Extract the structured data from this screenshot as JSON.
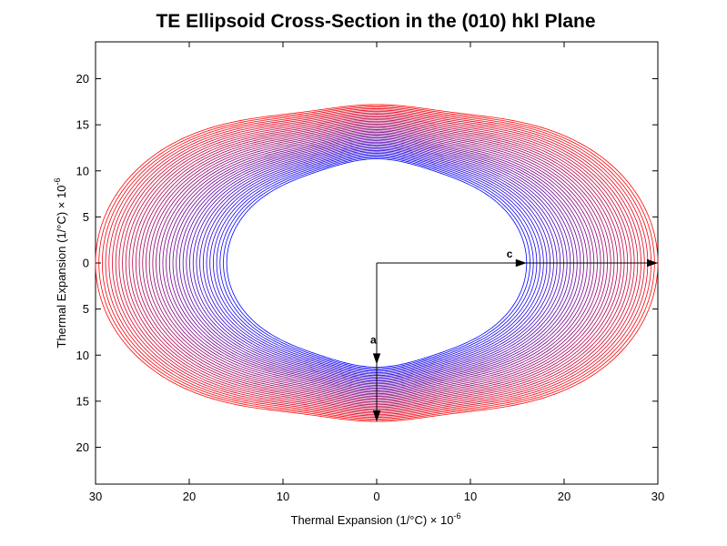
{
  "chart_data": {
    "type": "line",
    "title": "TE Ellipsoid Cross-Section in the (010) hkl Plane",
    "xlabel": {
      "text": "Thermal Expansion (1/°C) × 10",
      "exp": "-6"
    },
    "ylabel": {
      "text": "Thermal Expansion (1/°C) × 10",
      "exp": "-6"
    },
    "xlim": [
      -30,
      30
    ],
    "ylim": [
      -24,
      24
    ],
    "x_ticks": [
      {
        "v": -30,
        "label": "30"
      },
      {
        "v": -20,
        "label": "20"
      },
      {
        "v": -10,
        "label": "10"
      },
      {
        "v": 0,
        "label": "0"
      },
      {
        "v": 10,
        "label": "10"
      },
      {
        "v": 20,
        "label": "20"
      },
      {
        "v": 30,
        "label": "30"
      }
    ],
    "y_ticks": [
      {
        "v": 20,
        "label": "20"
      },
      {
        "v": 15,
        "label": "15"
      },
      {
        "v": 10,
        "label": "10"
      },
      {
        "v": 5,
        "label": "5"
      },
      {
        "v": 0,
        "label": "0"
      },
      {
        "v": -5,
        "label": "5"
      },
      {
        "v": -10,
        "label": "10"
      },
      {
        "v": -15,
        "label": "15"
      },
      {
        "v": -20,
        "label": "20"
      }
    ],
    "grid": false,
    "series_colors": {
      "inner": "#0000ff",
      "outer": "#ff0000"
    },
    "contours": {
      "count": 40,
      "inner": {
        "c_axis": 16,
        "a_axis": 11.3
      },
      "outer": {
        "c_axis": 30,
        "a_axis": 17.2
      },
      "lobe_peak_x": 10,
      "lobe_peak_height": 17.7
    },
    "axis_arrows": [
      {
        "label": "c",
        "from": [
          0,
          0
        ],
        "to": [
          30,
          0
        ],
        "mid": [
          16,
          0
        ]
      },
      {
        "label": "a",
        "from": [
          0,
          0
        ],
        "to": [
          0,
          -17.2
        ],
        "mid": [
          0,
          -11
        ]
      }
    ]
  }
}
